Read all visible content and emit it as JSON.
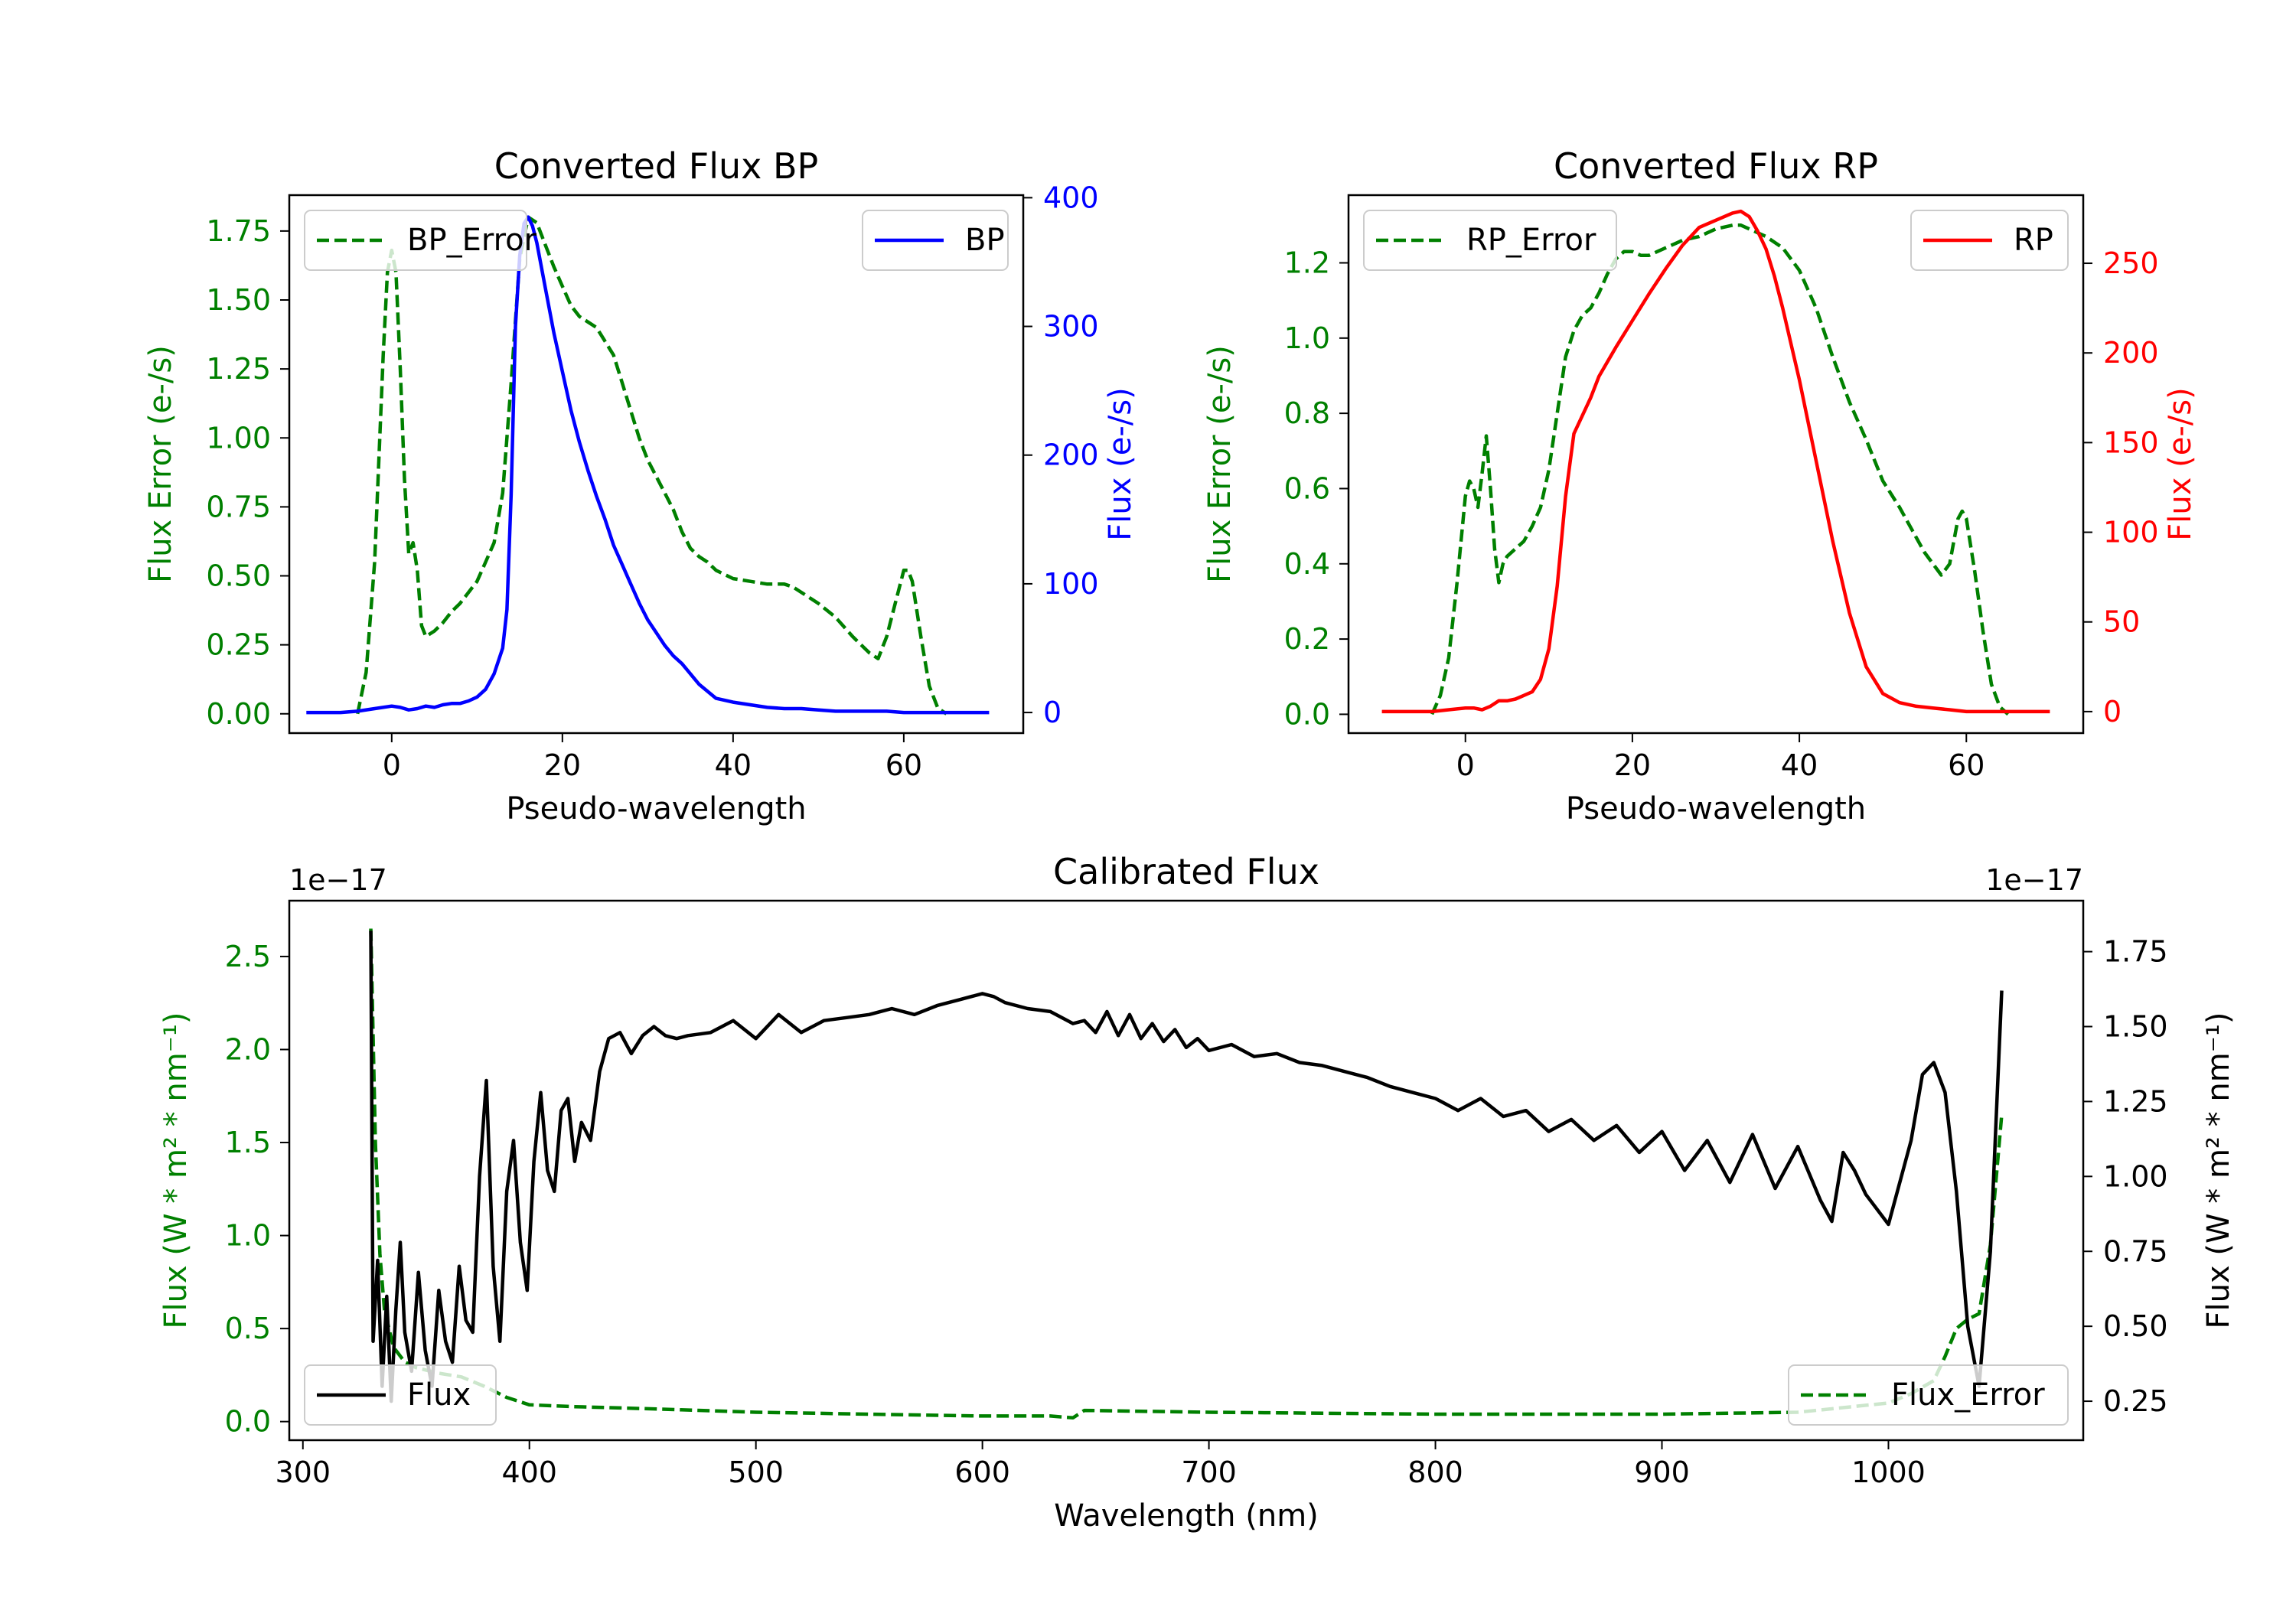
{
  "chart_data": [
    {
      "type": "line",
      "title": "Converted Flux BP",
      "xlabel": "Pseudo-wavelength",
      "ylabel_left": "Flux Error (e-/s)",
      "ylabel_right": "Flux (e-/s)",
      "xlim": [
        -12,
        74
      ],
      "ylim_left": [
        -0.07,
        1.88
      ],
      "ylim_right": [
        -16,
        402
      ],
      "xticks": [
        0,
        20,
        40,
        60
      ],
      "yticks_left": [
        0.0,
        0.25,
        0.5,
        0.75,
        1.0,
        1.25,
        1.5,
        1.75
      ],
      "ytick_labels_left": [
        "0.00",
        "0.25",
        "0.50",
        "0.75",
        "1.00",
        "1.25",
        "1.50",
        "1.75"
      ],
      "yticks_right": [
        0,
        100,
        200,
        300,
        400
      ],
      "legend_left": "BP_Error",
      "legend_right": "BP",
      "series": [
        {
          "name": "BP_Error",
          "axis": "left",
          "color": "#008000",
          "dash": true,
          "x": [
            -4,
            -3,
            -2,
            -1,
            -0.5,
            0,
            0.5,
            1,
            1.5,
            2,
            2.5,
            3,
            3.5,
            4,
            5,
            6,
            7,
            8,
            9,
            10,
            11,
            12,
            13,
            14,
            15,
            16,
            17,
            18,
            19,
            20,
            21,
            22,
            23,
            24,
            25,
            26,
            27,
            28,
            29,
            30,
            31,
            32,
            33,
            34,
            35,
            36,
            37,
            38,
            40,
            42,
            44,
            46,
            47,
            48,
            50,
            52,
            54,
            56,
            57,
            58,
            59,
            60,
            60.5,
            61,
            62,
            63,
            64,
            65
          ],
          "y": [
            0.0,
            0.15,
            0.55,
            1.3,
            1.6,
            1.68,
            1.6,
            1.25,
            0.85,
            0.58,
            0.62,
            0.52,
            0.32,
            0.28,
            0.3,
            0.33,
            0.37,
            0.4,
            0.44,
            0.48,
            0.55,
            0.62,
            0.8,
            1.2,
            1.65,
            1.8,
            1.78,
            1.7,
            1.62,
            1.55,
            1.48,
            1.44,
            1.42,
            1.4,
            1.35,
            1.3,
            1.2,
            1.1,
            1.0,
            0.92,
            0.86,
            0.8,
            0.74,
            0.66,
            0.6,
            0.57,
            0.55,
            0.52,
            0.49,
            0.48,
            0.47,
            0.47,
            0.46,
            0.44,
            0.4,
            0.35,
            0.28,
            0.22,
            0.2,
            0.28,
            0.4,
            0.52,
            0.52,
            0.48,
            0.28,
            0.1,
            0.02,
            0.0
          ]
        },
        {
          "name": "BP",
          "axis": "right",
          "color": "#0000ff",
          "dash": false,
          "x": [
            -10,
            -6,
            -4,
            -2,
            0,
            1,
            2,
            3,
            4,
            5,
            6,
            7,
            8,
            9,
            10,
            11,
            12,
            13,
            13.5,
            14,
            14.5,
            15,
            15.5,
            16,
            16.5,
            17,
            18,
            19,
            20,
            21,
            22,
            23,
            24,
            25,
            26,
            27,
            28,
            29,
            30,
            31,
            32,
            33,
            34,
            35,
            36,
            38,
            40,
            42,
            44,
            46,
            48,
            50,
            52,
            54,
            56,
            58,
            60,
            62,
            64,
            66,
            70
          ],
          "y": [
            0,
            0,
            1,
            3,
            5,
            4,
            2,
            3,
            5,
            4,
            6,
            7,
            7,
            9,
            12,
            18,
            30,
            50,
            80,
            170,
            300,
            355,
            380,
            385,
            378,
            365,
            330,
            295,
            265,
            235,
            210,
            188,
            168,
            150,
            130,
            115,
            100,
            85,
            72,
            62,
            52,
            44,
            38,
            30,
            22,
            11,
            8,
            6,
            4,
            3,
            3,
            2,
            1,
            1,
            1,
            1,
            0,
            0,
            0,
            0,
            0
          ]
        }
      ]
    },
    {
      "type": "line",
      "title": "Converted Flux RP",
      "xlabel": "Pseudo-wavelength",
      "ylabel_left": "Flux Error (e-/s)",
      "ylabel_right": "Flux (e-/s)",
      "xlim": [
        -14,
        74
      ],
      "ylim_left": [
        -0.05,
        1.38
      ],
      "ylim_right": [
        -12,
        288
      ],
      "xticks": [
        0,
        20,
        40,
        60
      ],
      "yticks_left": [
        0.0,
        0.2,
        0.4,
        0.6,
        0.8,
        1.0,
        1.2
      ],
      "ytick_labels_left": [
        "0.0",
        "0.2",
        "0.4",
        "0.6",
        "0.8",
        "1.0",
        "1.2"
      ],
      "yticks_right": [
        0,
        50,
        100,
        150,
        200,
        250
      ],
      "legend_left": "RP_Error",
      "legend_right": "RP",
      "series": [
        {
          "name": "RP_Error",
          "axis": "left",
          "color": "#008000",
          "dash": true,
          "x": [
            -4,
            -3,
            -2,
            -1,
            0,
            0.5,
            1,
            1.5,
            2,
            2.5,
            3,
            3.5,
            4,
            4.5,
            5,
            6,
            7,
            8,
            9,
            10,
            11,
            12,
            13,
            14,
            15,
            16,
            17,
            18,
            19,
            20,
            21,
            22,
            23,
            24,
            25,
            26,
            28,
            30,
            32,
            33,
            34,
            36,
            38,
            40,
            42,
            44,
            46,
            48,
            50,
            52,
            54,
            55,
            56,
            57,
            58,
            58.5,
            59,
            59.5,
            60,
            61,
            62,
            63,
            64,
            65
          ],
          "y": [
            0.0,
            0.05,
            0.15,
            0.35,
            0.58,
            0.62,
            0.6,
            0.55,
            0.64,
            0.74,
            0.6,
            0.44,
            0.35,
            0.4,
            0.42,
            0.44,
            0.46,
            0.5,
            0.55,
            0.65,
            0.8,
            0.95,
            1.02,
            1.06,
            1.08,
            1.12,
            1.17,
            1.21,
            1.23,
            1.23,
            1.22,
            1.22,
            1.23,
            1.24,
            1.25,
            1.26,
            1.27,
            1.29,
            1.3,
            1.3,
            1.29,
            1.27,
            1.24,
            1.18,
            1.08,
            0.95,
            0.83,
            0.73,
            0.62,
            0.55,
            0.47,
            0.43,
            0.4,
            0.37,
            0.4,
            0.46,
            0.52,
            0.54,
            0.52,
            0.38,
            0.22,
            0.08,
            0.02,
            0.0
          ]
        },
        {
          "name": "RP",
          "axis": "right",
          "color": "#ff0000",
          "dash": false,
          "x": [
            -10,
            -6,
            -4,
            -2,
            0,
            1,
            2,
            3,
            4,
            5,
            6,
            7,
            8,
            9,
            10,
            11,
            12,
            13,
            14,
            15,
            16,
            18,
            20,
            22,
            24,
            26,
            28,
            30,
            32,
            33,
            34,
            35,
            36,
            37,
            38,
            40,
            42,
            44,
            46,
            48,
            50,
            52,
            54,
            56,
            58,
            60,
            62,
            66,
            70
          ],
          "y": [
            0,
            0,
            0,
            1,
            2,
            2,
            1,
            3,
            6,
            6,
            7,
            9,
            11,
            18,
            35,
            70,
            120,
            155,
            165,
            175,
            187,
            203,
            218,
            233,
            247,
            260,
            270,
            274,
            278,
            279,
            276,
            268,
            258,
            243,
            225,
            185,
            140,
            95,
            55,
            25,
            10,
            5,
            3,
            2,
            1,
            0,
            0,
            0,
            0
          ]
        }
      ]
    },
    {
      "type": "line",
      "title": "Calibrated Flux",
      "xlabel": "Wavelength (nm)",
      "ylabel_left": "Flux (W * m² * nm⁻¹)",
      "ylabel_right": "Flux (W * m² * nm⁻¹)",
      "offset_left": "1e−17",
      "offset_right": "1e−17",
      "xlim": [
        294,
        1086
      ],
      "ylim_left": [
        -0.1,
        2.8
      ],
      "ylim_right": [
        0.12,
        1.92
      ],
      "xticks": [
        300,
        400,
        500,
        600,
        700,
        800,
        900,
        1000
      ],
      "yticks_left": [
        0.0,
        0.5,
        1.0,
        1.5,
        2.0,
        2.5
      ],
      "ytick_labels_left": [
        "0.0",
        "0.5",
        "1.0",
        "1.5",
        "2.0",
        "2.5"
      ],
      "yticks_right": [
        0.25,
        0.5,
        0.75,
        1.0,
        1.25,
        1.5,
        1.75
      ],
      "ytick_labels_right": [
        "0.25",
        "0.50",
        "0.75",
        "1.00",
        "1.25",
        "1.50",
        "1.75"
      ],
      "legend_left": "Flux",
      "legend_right": "Flux_Error",
      "series": [
        {
          "name": "Flux",
          "axis": "right",
          "color": "#000000",
          "dash": false,
          "x": [
            330,
            331,
            333,
            335,
            337,
            339,
            341,
            343,
            345,
            348,
            351,
            354,
            357,
            360,
            363,
            366,
            369,
            372,
            375,
            378,
            381,
            384,
            387,
            390,
            393,
            396,
            399,
            402,
            405,
            408,
            411,
            414,
            417,
            420,
            423,
            427,
            431,
            435,
            440,
            445,
            450,
            455,
            460,
            465,
            470,
            480,
            490,
            500,
            510,
            520,
            530,
            540,
            550,
            560,
            570,
            580,
            590,
            600,
            605,
            610,
            620,
            630,
            640,
            645,
            650,
            655,
            660,
            665,
            670,
            675,
            680,
            685,
            690,
            695,
            700,
            710,
            720,
            730,
            740,
            750,
            760,
            770,
            780,
            790,
            800,
            810,
            820,
            830,
            840,
            850,
            860,
            870,
            880,
            890,
            900,
            910,
            920,
            930,
            940,
            950,
            960,
            970,
            975,
            980,
            985,
            990,
            1000,
            1010,
            1015,
            1020,
            1025,
            1030,
            1035,
            1040,
            1045,
            1050
          ],
          "y": [
            1.82,
            0.45,
            0.72,
            0.3,
            0.6,
            0.25,
            0.55,
            0.78,
            0.48,
            0.35,
            0.68,
            0.42,
            0.3,
            0.62,
            0.45,
            0.38,
            0.7,
            0.52,
            0.48,
            1.0,
            1.32,
            0.7,
            0.45,
            0.95,
            1.12,
            0.78,
            0.62,
            1.05,
            1.28,
            1.02,
            0.95,
            1.22,
            1.26,
            1.05,
            1.18,
            1.12,
            1.35,
            1.46,
            1.48,
            1.41,
            1.47,
            1.5,
            1.47,
            1.46,
            1.47,
            1.48,
            1.52,
            1.46,
            1.54,
            1.48,
            1.52,
            1.53,
            1.54,
            1.56,
            1.54,
            1.57,
            1.59,
            1.61,
            1.6,
            1.58,
            1.56,
            1.55,
            1.51,
            1.52,
            1.48,
            1.55,
            1.47,
            1.54,
            1.46,
            1.51,
            1.45,
            1.49,
            1.43,
            1.46,
            1.42,
            1.44,
            1.4,
            1.41,
            1.38,
            1.37,
            1.35,
            1.33,
            1.3,
            1.28,
            1.26,
            1.22,
            1.26,
            1.2,
            1.22,
            1.15,
            1.19,
            1.12,
            1.17,
            1.08,
            1.15,
            1.02,
            1.12,
            0.98,
            1.14,
            0.96,
            1.1,
            0.92,
            0.85,
            1.08,
            1.02,
            0.94,
            0.84,
            1.12,
            1.34,
            1.38,
            1.28,
            0.95,
            0.5,
            0.3,
            0.75,
            1.62
          ]
        },
        {
          "name": "Flux_Error",
          "axis": "left",
          "color": "#008000",
          "dash": true,
          "x": [
            330,
            332,
            334,
            336,
            338,
            340,
            345,
            350,
            360,
            370,
            380,
            390,
            400,
            420,
            450,
            500,
            550,
            600,
            630,
            640,
            645,
            700,
            800,
            900,
            960,
            1000,
            1010,
            1020,
            1025,
            1030,
            1035,
            1040,
            1045,
            1050
          ],
          "y": [
            2.65,
            1.5,
            0.9,
            0.6,
            0.5,
            0.4,
            0.32,
            0.29,
            0.26,
            0.24,
            0.19,
            0.13,
            0.09,
            0.08,
            0.07,
            0.05,
            0.04,
            0.03,
            0.03,
            0.02,
            0.06,
            0.05,
            0.04,
            0.04,
            0.05,
            0.1,
            0.15,
            0.22,
            0.35,
            0.5,
            0.55,
            0.58,
            0.95,
            1.65
          ]
        }
      ]
    }
  ]
}
